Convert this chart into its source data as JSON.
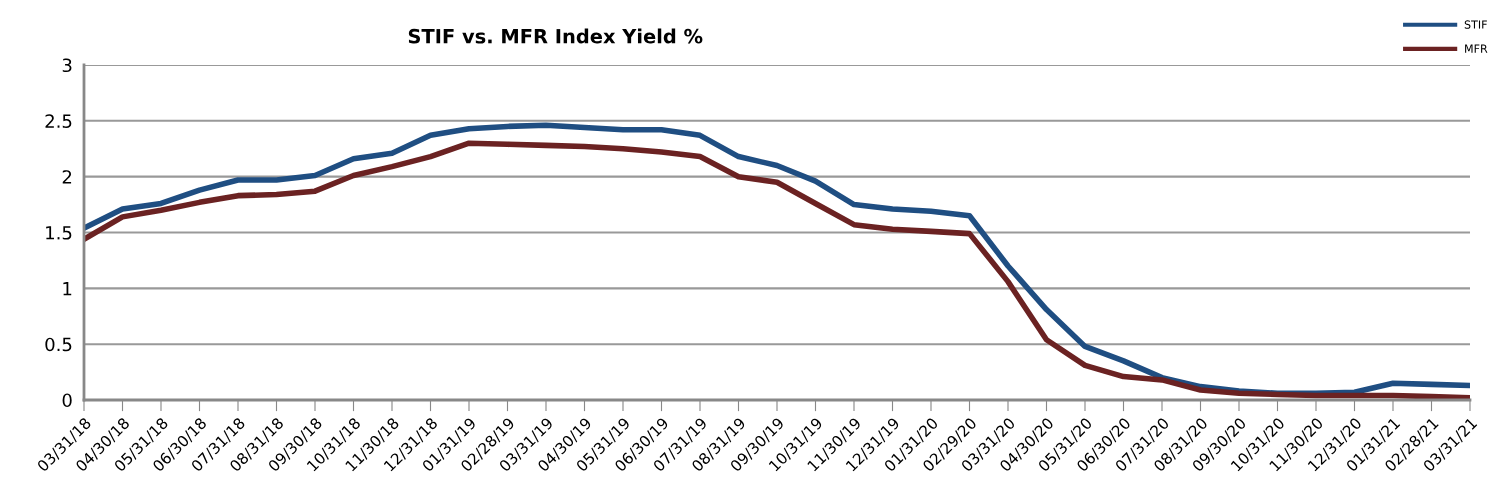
{
  "chart_data": {
    "type": "line",
    "title": "STIF vs. MFR Index Yield %",
    "categories": [
      "03/31/18",
      "04/30/18",
      "05/31/18",
      "06/30/18",
      "07/31/18",
      "08/31/18",
      "09/30/18",
      "10/31/18",
      "11/30/18",
      "12/31/18",
      "01/31/19",
      "02/28/19",
      "03/31/19",
      "04/30/19",
      "05/31/19",
      "06/30/19",
      "07/31/19",
      "08/31/19",
      "09/30/19",
      "10/31/19",
      "11/30/19",
      "12/31/19",
      "01/31/20",
      "02/29/20",
      "03/31/20",
      "04/30/20",
      "05/31/20",
      "06/30/20",
      "07/31/20",
      "08/31/20",
      "09/30/20",
      "10/31/20",
      "11/30/20",
      "12/31/20",
      "01/31/21",
      "02/28/21",
      "03/31/21"
    ],
    "series": [
      {
        "name": "STIF",
        "color": "#1f4e82",
        "values": [
          1.54,
          1.71,
          1.76,
          1.88,
          1.97,
          1.97,
          2.01,
          2.16,
          2.21,
          2.37,
          2.43,
          2.45,
          2.46,
          2.44,
          2.42,
          2.42,
          2.37,
          2.18,
          2.1,
          1.96,
          1.75,
          1.71,
          1.69,
          1.65,
          1.2,
          0.81,
          0.48,
          0.35,
          0.2,
          0.12,
          0.08,
          0.06,
          0.06,
          0.07,
          0.15,
          0.14,
          0.13
        ]
      },
      {
        "name": "MFR",
        "color": "#6b2222",
        "values": [
          1.44,
          1.64,
          1.7,
          1.77,
          1.83,
          1.84,
          1.87,
          2.01,
          2.09,
          2.18,
          2.3,
          2.29,
          2.28,
          2.27,
          2.25,
          2.22,
          2.18,
          2.0,
          1.95,
          1.76,
          1.57,
          1.53,
          1.51,
          1.49,
          1.06,
          0.54,
          0.31,
          0.21,
          0.18,
          0.09,
          0.06,
          0.05,
          0.04,
          0.04,
          0.04,
          0.03,
          0.02
        ]
      }
    ],
    "ylim": [
      0,
      3
    ],
    "yticks": [
      0,
      0.5,
      1,
      1.5,
      2,
      2.5,
      3
    ],
    "grid": "y",
    "legend": "top right",
    "marker": "none",
    "line_style": "solid"
  }
}
